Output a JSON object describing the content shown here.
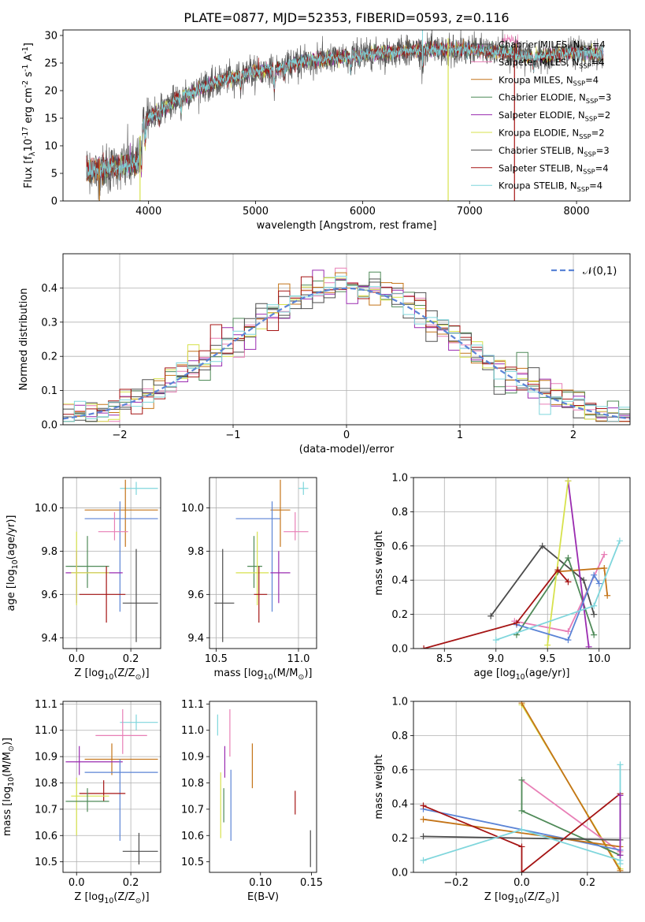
{
  "figure_title": "PLATE=0877, MJD=52353, FIBERID=0593, z=0.116",
  "colors": [
    "#4b4b4b",
    "#e87fb6",
    "#c47418",
    "#4f8a58",
    "#9a2bb0",
    "#d7e24d",
    "#505050",
    "#a51414",
    "#7fd6dc"
  ],
  "chart_data": [
    {
      "panel": "spectrum",
      "type": "line",
      "title": "PLATE=0877, MJD=52353, FIBERID=0593, z=0.116",
      "xlabel": "wavelength [Angstrom, rest frame]",
      "ylabel": "Flux [f$_\\lambda$10$^{-17}$ erg cm$^{-2}$ s$^{-1}$ A$^{-1}$]",
      "xlim": [
        3200,
        8500
      ],
      "ylim": [
        0,
        31
      ],
      "xticks": [
        "4000",
        "5000",
        "6000",
        "7000",
        "8000"
      ],
      "yticks": [
        "0",
        "5",
        "10",
        "15",
        "20",
        "25",
        "30"
      ],
      "continuum": {
        "x": [
          3420,
          3500,
          3600,
          3700,
          3800,
          3900,
          3950,
          4000,
          4100,
          4200,
          4300,
          4400,
          4500,
          4700,
          5000,
          5200,
          5500,
          5800,
          6000,
          6300,
          6600,
          7000,
          7300,
          7600,
          8000,
          8250
        ],
        "y": [
          5.5,
          5.5,
          6.0,
          6.2,
          6.5,
          7.0,
          14.0,
          15.0,
          16.5,
          17.5,
          19.0,
          19.5,
          20.5,
          22.0,
          23.5,
          24.0,
          25.5,
          26.0,
          26.5,
          27.0,
          27.5,
          27.5,
          27.0,
          26.0,
          27.0,
          26.5
        ]
      },
      "series": [
        {
          "name": "Chabrier MILES, N$_{SSP}$=4",
          "color": "#4b4b4b"
        },
        {
          "name": "Salpeter MILES, N$_{SSP}$=4",
          "color": "#e87fb6"
        },
        {
          "name": "Kroupa MILES, N$_{SSP}$=4",
          "color": "#c47418"
        },
        {
          "name": "Chabrier ELODIE, N$_{SSP}$=3",
          "color": "#4f8a58"
        },
        {
          "name": "Salpeter ELODIE, N$_{SSP}$=2",
          "color": "#9a2bb0"
        },
        {
          "name": "Kroupa ELODIE, N$_{SSP}$=2",
          "color": "#d7e24d"
        },
        {
          "name": "Chabrier STELIB, N$_{SSP}$=3",
          "color": "#505050"
        },
        {
          "name": "Salpeter STELIB, N$_{SSP}$=4",
          "color": "#a51414"
        },
        {
          "name": "Kroupa STELIB, N$_{SSP}$=4",
          "color": "#7fd6dc"
        }
      ],
      "model_edges": [
        {
          "color": "#c47418",
          "x": 3540
        },
        {
          "color": "#d7e24d",
          "x": 3920
        },
        {
          "color": "#d7e24d",
          "x": 6800
        },
        {
          "color": "#a51414",
          "x": 7420
        }
      ]
    },
    {
      "panel": "residual_histogram",
      "type": "line",
      "xlabel": "(data-model)/error",
      "ylabel": "Normed distribution",
      "xlim": [
        -2.5,
        2.5
      ],
      "ylim": [
        0,
        0.5
      ],
      "xticks": [
        "−2",
        "−1",
        "0",
        "1",
        "2"
      ],
      "yticks": [
        "0.0",
        "0.1",
        "0.2",
        "0.3",
        "0.4"
      ],
      "legend": "$\\mathcal{N}(0,1)$",
      "legend_location": "upper right",
      "grid": true,
      "bins": {
        "start": -2.5,
        "width": 0.1,
        "count": 50
      }
    },
    {
      "panel": "age_vs_Z",
      "type": "scatter",
      "xlabel": "Z [log$_{10}$(Z/Z$_\\odot$)]",
      "ylabel": "age  [log$_{10}$(age/yr)]",
      "xlim": [
        -0.05,
        0.31
      ],
      "ylim": [
        9.35,
        10.14
      ],
      "xticks": [
        "0.0",
        "0.2"
      ],
      "yticks": [
        "9.4",
        "9.6",
        "9.8",
        "10.0"
      ],
      "grid": true,
      "points": [
        {
          "c": "#7fd6dc",
          "x": 0.22,
          "y": 10.09,
          "xe": [
            0.16,
            0.3
          ],
          "ye": [
            10.06,
            10.12
          ]
        },
        {
          "c": "#c47418",
          "x": 0.18,
          "y": 9.99,
          "xe": [
            0.03,
            0.3
          ],
          "ye": [
            9.82,
            10.13
          ]
        },
        {
          "c": "#5b84d6",
          "x": 0.16,
          "y": 9.95,
          "xe": [
            0.03,
            0.3
          ],
          "ye": [
            9.52,
            10.03
          ]
        },
        {
          "c": "#e87fb6",
          "x": 0.14,
          "y": 9.89,
          "xe": [
            0.08,
            0.19
          ],
          "ye": [
            9.85,
            9.98
          ]
        },
        {
          "c": "#4f8a58",
          "x": 0.04,
          "y": 9.73,
          "xe": [
            -0.04,
            0.12
          ],
          "ye": [
            9.63,
            9.87
          ]
        },
        {
          "c": "#9a2bb0",
          "x": 0.0,
          "y": 9.7,
          "xe": [
            -0.04,
            0.17
          ],
          "ye": [
            9.56,
            9.8
          ]
        },
        {
          "c": "#d7e24d",
          "x": 0.0,
          "y": 9.7,
          "xe": [
            -0.02,
            0.12
          ],
          "ye": [
            9.55,
            9.89
          ]
        },
        {
          "c": "#a51414",
          "x": 0.11,
          "y": 9.6,
          "xe": [
            0.01,
            0.18
          ],
          "ye": [
            9.47,
            9.73
          ]
        },
        {
          "c": "#4b4b4b",
          "x": 0.22,
          "y": 9.56,
          "xe": [
            0.17,
            0.3
          ],
          "ye": [
            9.38,
            9.81
          ]
        }
      ]
    },
    {
      "panel": "age_vs_mass",
      "type": "scatter",
      "xlabel": "mass [log$_{10}$(M/M$_\\odot$)]",
      "xlim": [
        10.46,
        11.11
      ],
      "ylim": [
        9.35,
        10.14
      ],
      "xticks": [
        "10.5",
        "11.0"
      ],
      "yticks": [
        "9.4",
        "9.6",
        "9.8",
        "10.0"
      ],
      "grid": true,
      "points": [
        {
          "c": "#7fd6dc",
          "x": 11.03,
          "y": 10.09,
          "xe": [
            11.0,
            11.06
          ],
          "ye": [
            10.06,
            10.12
          ]
        },
        {
          "c": "#c47418",
          "x": 10.89,
          "y": 9.99,
          "xe": [
            10.83,
            10.95
          ],
          "ye": [
            9.82,
            10.13
          ]
        },
        {
          "c": "#5b84d6",
          "x": 10.84,
          "y": 9.95,
          "xe": [
            10.62,
            10.89
          ],
          "ye": [
            9.52,
            10.03
          ]
        },
        {
          "c": "#e87fb6",
          "x": 10.98,
          "y": 9.89,
          "xe": [
            10.91,
            11.06
          ],
          "ye": [
            9.85,
            9.98
          ]
        },
        {
          "c": "#4f8a58",
          "x": 10.73,
          "y": 9.73,
          "xe": [
            10.69,
            10.78
          ],
          "ye": [
            9.63,
            9.87
          ]
        },
        {
          "c": "#9a2bb0",
          "x": 10.88,
          "y": 9.7,
          "xe": [
            10.83,
            10.95
          ],
          "ye": [
            9.56,
            9.8
          ]
        },
        {
          "c": "#d7e24d",
          "x": 10.75,
          "y": 9.7,
          "xe": [
            10.62,
            10.82
          ],
          "ye": [
            9.55,
            9.89
          ]
        },
        {
          "c": "#a51414",
          "x": 10.76,
          "y": 9.6,
          "xe": [
            10.73,
            10.81
          ],
          "ye": [
            9.47,
            9.73
          ]
        },
        {
          "c": "#4b4b4b",
          "x": 10.54,
          "y": 9.56,
          "xe": [
            10.49,
            10.61
          ],
          "ye": [
            9.38,
            9.81
          ]
        }
      ]
    },
    {
      "panel": "weight_vs_age",
      "type": "line",
      "xlabel": "age  [log$_{10}$(age/yr)]",
      "ylabel": "mass weight",
      "xlim": [
        8.2,
        10.3
      ],
      "ylim": [
        0,
        1
      ],
      "xticks": [
        "8.5",
        "9.0",
        "9.5",
        "10.0"
      ],
      "yticks": [
        "0.0",
        "0.2",
        "0.4",
        "0.6",
        "0.8",
        "1.0"
      ],
      "grid": true,
      "series": [
        {
          "c": "#4b4b4b",
          "x": [
            8.95,
            9.45,
            9.85,
            9.95
          ],
          "y": [
            0.19,
            0.6,
            0.4,
            0.2
          ]
        },
        {
          "c": "#e87fb6",
          "x": 9.18,
          "y": 0.16,
          "_x": [
            9.18,
            9.7,
            10.05
          ],
          "_y": [
            0.16,
            0.1,
            0.55
          ]
        },
        {
          "c": "#c47418",
          "x": [
            9.6,
            10.05,
            10.08
          ],
          "y": [
            0.45,
            0.47,
            0.31
          ]
        },
        {
          "c": "#4f8a58",
          "x": [
            9.2,
            9.7,
            9.95
          ],
          "y": [
            0.08,
            0.53,
            0.08
          ]
        },
        {
          "c": "#9a2bb0",
          "x": [
            9.7,
            9.9
          ],
          "y": [
            0.98,
            0.01
          ]
        },
        {
          "c": "#d7e24d",
          "x": [
            9.5,
            9.7
          ],
          "y": [
            0.02,
            0.98
          ]
        },
        {
          "c": "#5b84d6",
          "x": [
            9.2,
            9.7,
            9.95,
            10.0
          ],
          "y": [
            0.14,
            0.05,
            0.43,
            0.38
          ]
        },
        {
          "c": "#a51414",
          "x": [
            8.3,
            9.2,
            9.6,
            9.7
          ],
          "y": [
            0.0,
            0.15,
            0.46,
            0.39
          ]
        },
        {
          "c": "#7fd6dc",
          "x": [
            9.0,
            9.95,
            10.2
          ],
          "y": [
            0.05,
            0.25,
            0.63
          ]
        }
      ]
    },
    {
      "panel": "mass_vs_Z",
      "type": "scatter",
      "xlabel": "Z [log$_{10}$(Z/Z$_\\odot$)]",
      "ylabel": "mass [log$_{10}$(M/M$_\\odot$)]",
      "xlim": [
        -0.05,
        0.31
      ],
      "ylim": [
        10.46,
        11.11
      ],
      "xticks": [
        "0.0",
        "0.2"
      ],
      "yticks": [
        "10.5",
        "10.6",
        "10.7",
        "10.8",
        "10.9",
        "11.0",
        "11.1"
      ],
      "grid": true,
      "points": [
        {
          "c": "#7fd6dc",
          "x": 0.22,
          "y": 11.03,
          "xe": [
            0.16,
            0.3
          ],
          "ye": [
            11.0,
            11.06
          ]
        },
        {
          "c": "#e87fb6",
          "x": 0.17,
          "y": 10.98,
          "xe": [
            0.07,
            0.26
          ],
          "ye": [
            10.91,
            11.08
          ]
        },
        {
          "c": "#c47418",
          "x": 0.13,
          "y": 10.89,
          "xe": [
            0.03,
            0.3
          ],
          "ye": [
            10.83,
            10.95
          ]
        },
        {
          "c": "#9a2bb0",
          "x": 0.01,
          "y": 10.88,
          "xe": [
            -0.04,
            0.17
          ],
          "ye": [
            10.83,
            10.94
          ]
        },
        {
          "c": "#5b84d6",
          "x": 0.16,
          "y": 10.84,
          "xe": [
            0.03,
            0.3
          ],
          "ye": [
            10.58,
            10.89
          ]
        },
        {
          "c": "#a51414",
          "x": 0.1,
          "y": 10.76,
          "xe": [
            0.01,
            0.18
          ],
          "ye": [
            10.73,
            10.81
          ]
        },
        {
          "c": "#d7e24d",
          "x": 0.0,
          "y": 10.75,
          "xe": [
            -0.02,
            0.12
          ],
          "ye": [
            10.6,
            10.82
          ]
        },
        {
          "c": "#4f8a58",
          "x": 0.04,
          "y": 10.73,
          "xe": [
            -0.04,
            0.12
          ],
          "ye": [
            10.69,
            10.78
          ]
        },
        {
          "c": "#4b4b4b",
          "x": 0.23,
          "y": 10.54,
          "xe": [
            0.17,
            0.3
          ],
          "ye": [
            10.49,
            10.61
          ]
        }
      ]
    },
    {
      "panel": "mass_vs_EBV",
      "type": "scatter",
      "xlabel": "E(B-V)",
      "xlim": [
        0.05,
        0.155
      ],
      "ylim": [
        10.46,
        11.11
      ],
      "xticks": [
        "0.10",
        "0.15"
      ],
      "yticks": [
        "10.5",
        "10.6",
        "10.7",
        "10.8",
        "10.9",
        "11.0",
        "11.1"
      ],
      "points": [
        {
          "c": "#7fd6dc",
          "x": 0.058,
          "ye": [
            10.98,
            11.06
          ]
        },
        {
          "c": "#e87fb6",
          "x": 0.07,
          "ye": [
            10.9,
            11.08
          ]
        },
        {
          "c": "#c47418",
          "x": 0.092,
          "ye": [
            10.78,
            10.95
          ]
        },
        {
          "c": "#9a2bb0",
          "x": 0.065,
          "ye": [
            10.82,
            10.94
          ]
        },
        {
          "c": "#5b84d6",
          "x": 0.071,
          "ye": [
            10.58,
            10.85
          ]
        },
        {
          "c": "#a51414",
          "x": 0.134,
          "ye": [
            10.68,
            10.77
          ]
        },
        {
          "c": "#d7e24d",
          "x": 0.061,
          "ye": [
            10.59,
            10.84
          ]
        },
        {
          "c": "#4f8a58",
          "x": 0.064,
          "ye": [
            10.65,
            10.78
          ]
        },
        {
          "c": "#4b4b4b",
          "x": 0.149,
          "ye": [
            10.48,
            10.62
          ]
        }
      ]
    },
    {
      "panel": "weight_vs_Z",
      "type": "line",
      "xlabel": "Z [log$_{10}$(Z/Z$_\\odot$)]",
      "ylabel": "mass weight",
      "xlim": [
        -0.33,
        0.33
      ],
      "ylim": [
        0,
        1
      ],
      "xticks": [
        "−0.2",
        "0.0",
        "0.2"
      ],
      "yticks": [
        "0.0",
        "0.2",
        "0.4",
        "0.6",
        "0.8",
        "1.0"
      ],
      "grid": true,
      "series": [
        {
          "c": "#d7e24d",
          "x": [
            0.0,
            0.3
          ],
          "y": [
            0.98,
            0.02
          ]
        },
        {
          "c": "#c47418",
          "x": [
            0.0,
            0.3
          ],
          "y": [
            0.99,
            0.01
          ]
        },
        {
          "c": "#e87fb6",
          "x": [
            0.0,
            0.3
          ],
          "y": [
            0.54,
            0.12
          ]
        },
        {
          "c": "#4f8a58",
          "x": [
            0.0,
            0.0,
            0.3
          ],
          "y": [
            0.54,
            0.36,
            0.1
          ]
        },
        {
          "c": "#5b84d6",
          "x": [
            -0.3,
            0.3
          ],
          "y": [
            0.37,
            0.13
          ]
        },
        {
          "c": "#c47418",
          "x": [
            -0.3,
            0.3
          ],
          "y": [
            0.31,
            0.15
          ]
        },
        {
          "c": "#4b4b4b",
          "x": [
            -0.3,
            0.3
          ],
          "y": [
            0.21,
            0.19
          ]
        },
        {
          "c": "#a51414",
          "x": [
            -0.3,
            0.0,
            0.0,
            0.3
          ],
          "y": [
            0.39,
            0.15,
            0.0,
            0.46
          ]
        },
        {
          "c": "#7fd6dc",
          "x": [
            -0.3,
            0.0,
            0.3
          ],
          "y": [
            0.07,
            0.25,
            0.07
          ]
        },
        {
          "c": "#7fd6dc",
          "x": [
            0.3,
            0.3
          ],
          "y": [
            0.63,
            0.05
          ]
        },
        {
          "c": "#9a2bb0",
          "x": [
            0.3,
            0.3
          ],
          "y": [
            0.45,
            0.1
          ]
        }
      ]
    }
  ]
}
